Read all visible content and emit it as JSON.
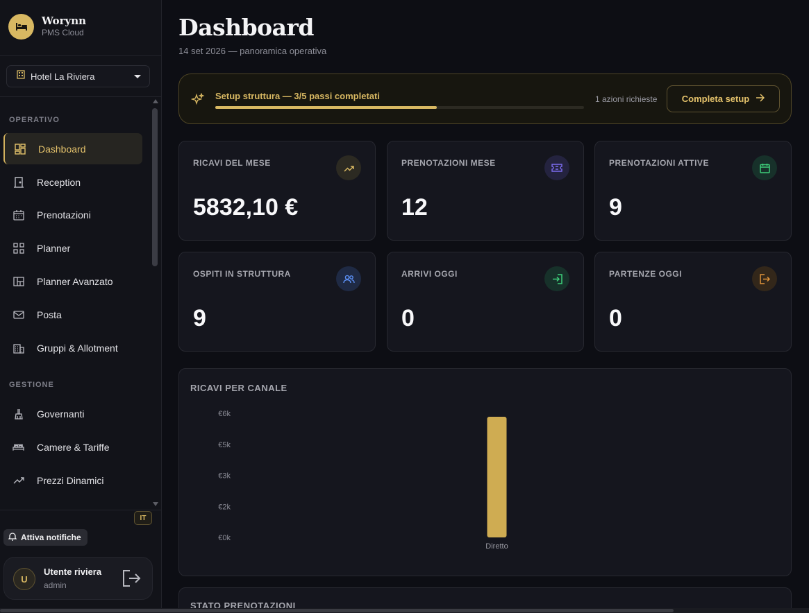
{
  "brand": {
    "name": "Worynn",
    "subtitle": "PMS Cloud",
    "logo_icon": "bed-icon"
  },
  "hotel_selector": {
    "value": "Hotel La Riviera",
    "icon": "building-icon"
  },
  "sidebar": {
    "sections": [
      {
        "title": "OPERATIVO",
        "items": [
          {
            "label": "Dashboard",
            "icon": "dashboard-icon",
            "active": true
          },
          {
            "label": "Reception",
            "icon": "door-icon"
          },
          {
            "label": "Prenotazioni",
            "icon": "calendar-icon"
          },
          {
            "label": "Planner",
            "icon": "grid-icon"
          },
          {
            "label": "Planner Avanzato",
            "icon": "layout-icon"
          },
          {
            "label": "Posta",
            "icon": "mail-icon"
          },
          {
            "label": "Gruppi & Allotment",
            "icon": "building-icon"
          }
        ]
      },
      {
        "title": "GESTIONE",
        "items": [
          {
            "label": "Governanti",
            "icon": "broom-icon"
          },
          {
            "label": "Camere & Tariffe",
            "icon": "bed-icon"
          },
          {
            "label": "Prezzi Dinamici",
            "icon": "trend-icon"
          }
        ]
      }
    ],
    "language": "IT",
    "notifications_button": "Attiva notifiche",
    "user": {
      "initial": "U",
      "name": "Utente riviera",
      "role": "admin"
    }
  },
  "header": {
    "title": "Dashboard",
    "subtitle": "14 set 2026 — panoramica operativa"
  },
  "setup": {
    "title": "Setup struttura — 3/5 passi completati",
    "progress": 0.6,
    "actions_text": "1 azioni richieste",
    "button_label": "Completa setup",
    "accent": "#d8b862"
  },
  "stats": [
    {
      "label": "RICAVI DEL MESE",
      "value": "5832,10 €",
      "icon": "trend-up-icon",
      "color": "#d8b862"
    },
    {
      "label": "PRENOTAZIONI MESE",
      "value": "12",
      "icon": "ticket-icon",
      "color": "#7c6cf0"
    },
    {
      "label": "PRENOTAZIONI ATTIVE",
      "value": "9",
      "icon": "calendar-icon",
      "color": "#3ecf7a"
    },
    {
      "label": "OSPITI IN STRUTTURA",
      "value": "9",
      "icon": "users-icon",
      "color": "#5a8df0"
    },
    {
      "label": "ARRIVI OGGI",
      "value": "0",
      "icon": "login-icon",
      "color": "#3ecf7a"
    },
    {
      "label": "PARTENZE OGGI",
      "value": "0",
      "icon": "logout-icon",
      "color": "#e0943a"
    }
  ],
  "chart_data": {
    "type": "bar",
    "title": "RICAVI PER CANALE",
    "categories": [
      "Diretto"
    ],
    "values": [
      5832.1
    ],
    "y_tick_labels": [
      "€0k",
      "€2k",
      "€3k",
      "€5k",
      "€6k"
    ],
    "y_ticks": [
      0,
      1500,
      3000,
      4500,
      6000
    ],
    "ylim": [
      0,
      6000
    ],
    "color": "#cfac52",
    "grid": false
  },
  "next_section": {
    "title": "STATO PRENOTAZIONI"
  }
}
